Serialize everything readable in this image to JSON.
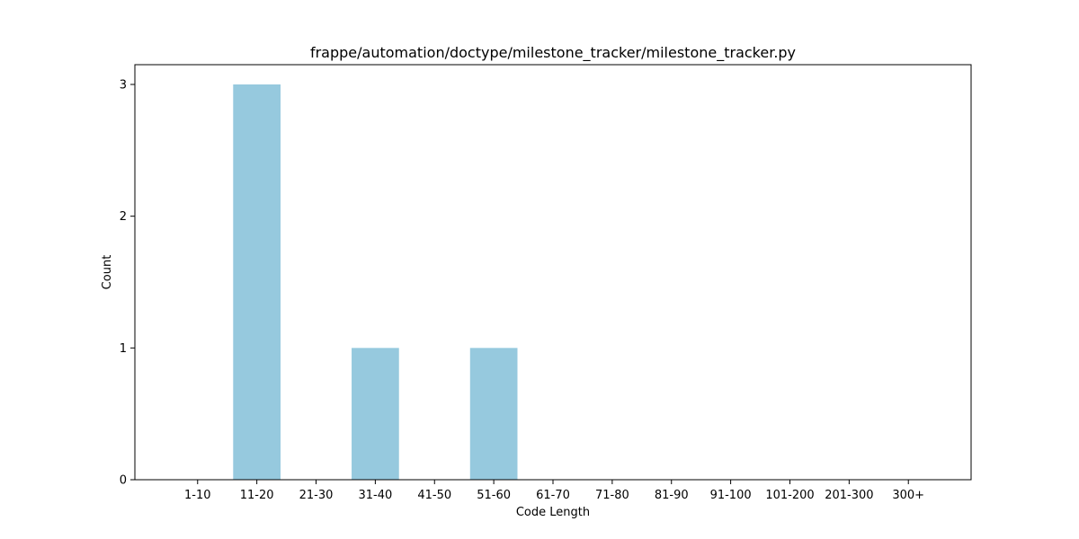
{
  "chart_data": {
    "type": "bar",
    "title": "frappe/automation/doctype/milestone_tracker/milestone_tracker.py",
    "xlabel": "Code Length",
    "ylabel": "Count",
    "categories": [
      "1-10",
      "11-20",
      "21-30",
      "31-40",
      "41-50",
      "51-60",
      "61-70",
      "71-80",
      "81-90",
      "91-100",
      "101-200",
      "201-300",
      "300+"
    ],
    "values": [
      0,
      3,
      0,
      1,
      0,
      1,
      0,
      0,
      0,
      0,
      0,
      0,
      0
    ],
    "yticks": [
      0,
      1,
      2,
      3
    ],
    "ylim": [
      0,
      3.15
    ],
    "grid": false,
    "bar_color": "#96c9de"
  }
}
